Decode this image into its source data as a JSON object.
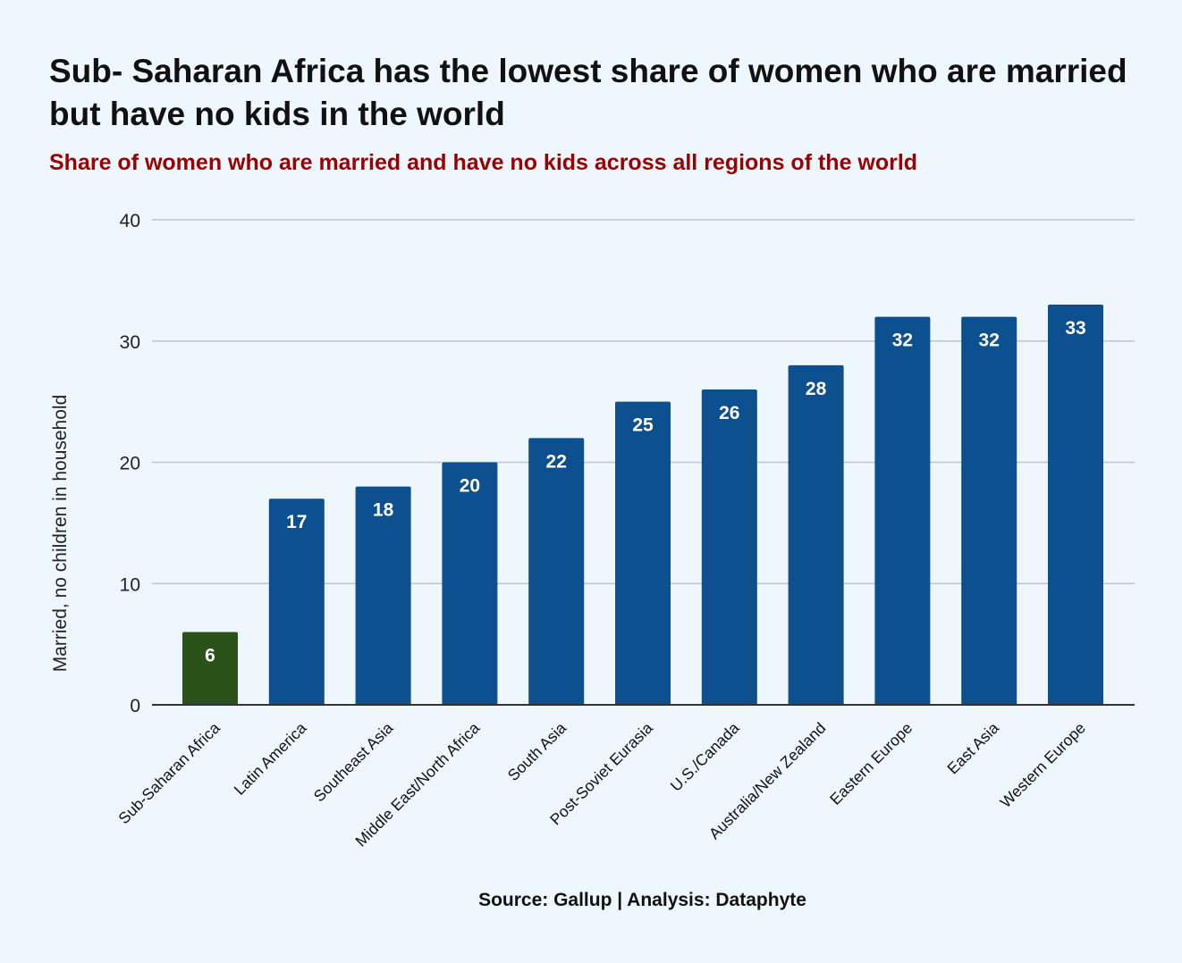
{
  "header": {
    "title": "Sub- Saharan Africa has the lowest share of women who are married but have no kids in the world",
    "subtitle": "Share of women who are married and have no kids across all regions of the world"
  },
  "footer": {
    "source": "Source: Gallup | Analysis: Dataphyte"
  },
  "colors": {
    "highlight": "#2a5219",
    "bar": "#0d5090",
    "subtitle": "#990000",
    "background": "#eef6fe",
    "grid": "#bcc6d1"
  },
  "chart_data": {
    "type": "bar",
    "title": "Sub- Saharan Africa has the lowest share of women who are married but have no kids in the world",
    "xlabel": "",
    "ylabel": "Married, no children in household",
    "ylim": [
      0,
      40
    ],
    "yticks": [
      0,
      10,
      20,
      30,
      40
    ],
    "grid": true,
    "categories": [
      "Sub-Saharan Africa",
      "Latin America",
      "Southeast Asia",
      "Middle East/North Africa",
      "South Asia",
      "Post-Soviet Eurasia",
      "U.S./Canada",
      "Australia/New Zealand",
      "Eastern Europe",
      "East Asia",
      "Western Europe"
    ],
    "values": [
      6,
      17,
      18,
      20,
      22,
      25,
      26,
      28,
      32,
      32,
      33
    ],
    "highlight_index": 0,
    "data_labels": true
  }
}
